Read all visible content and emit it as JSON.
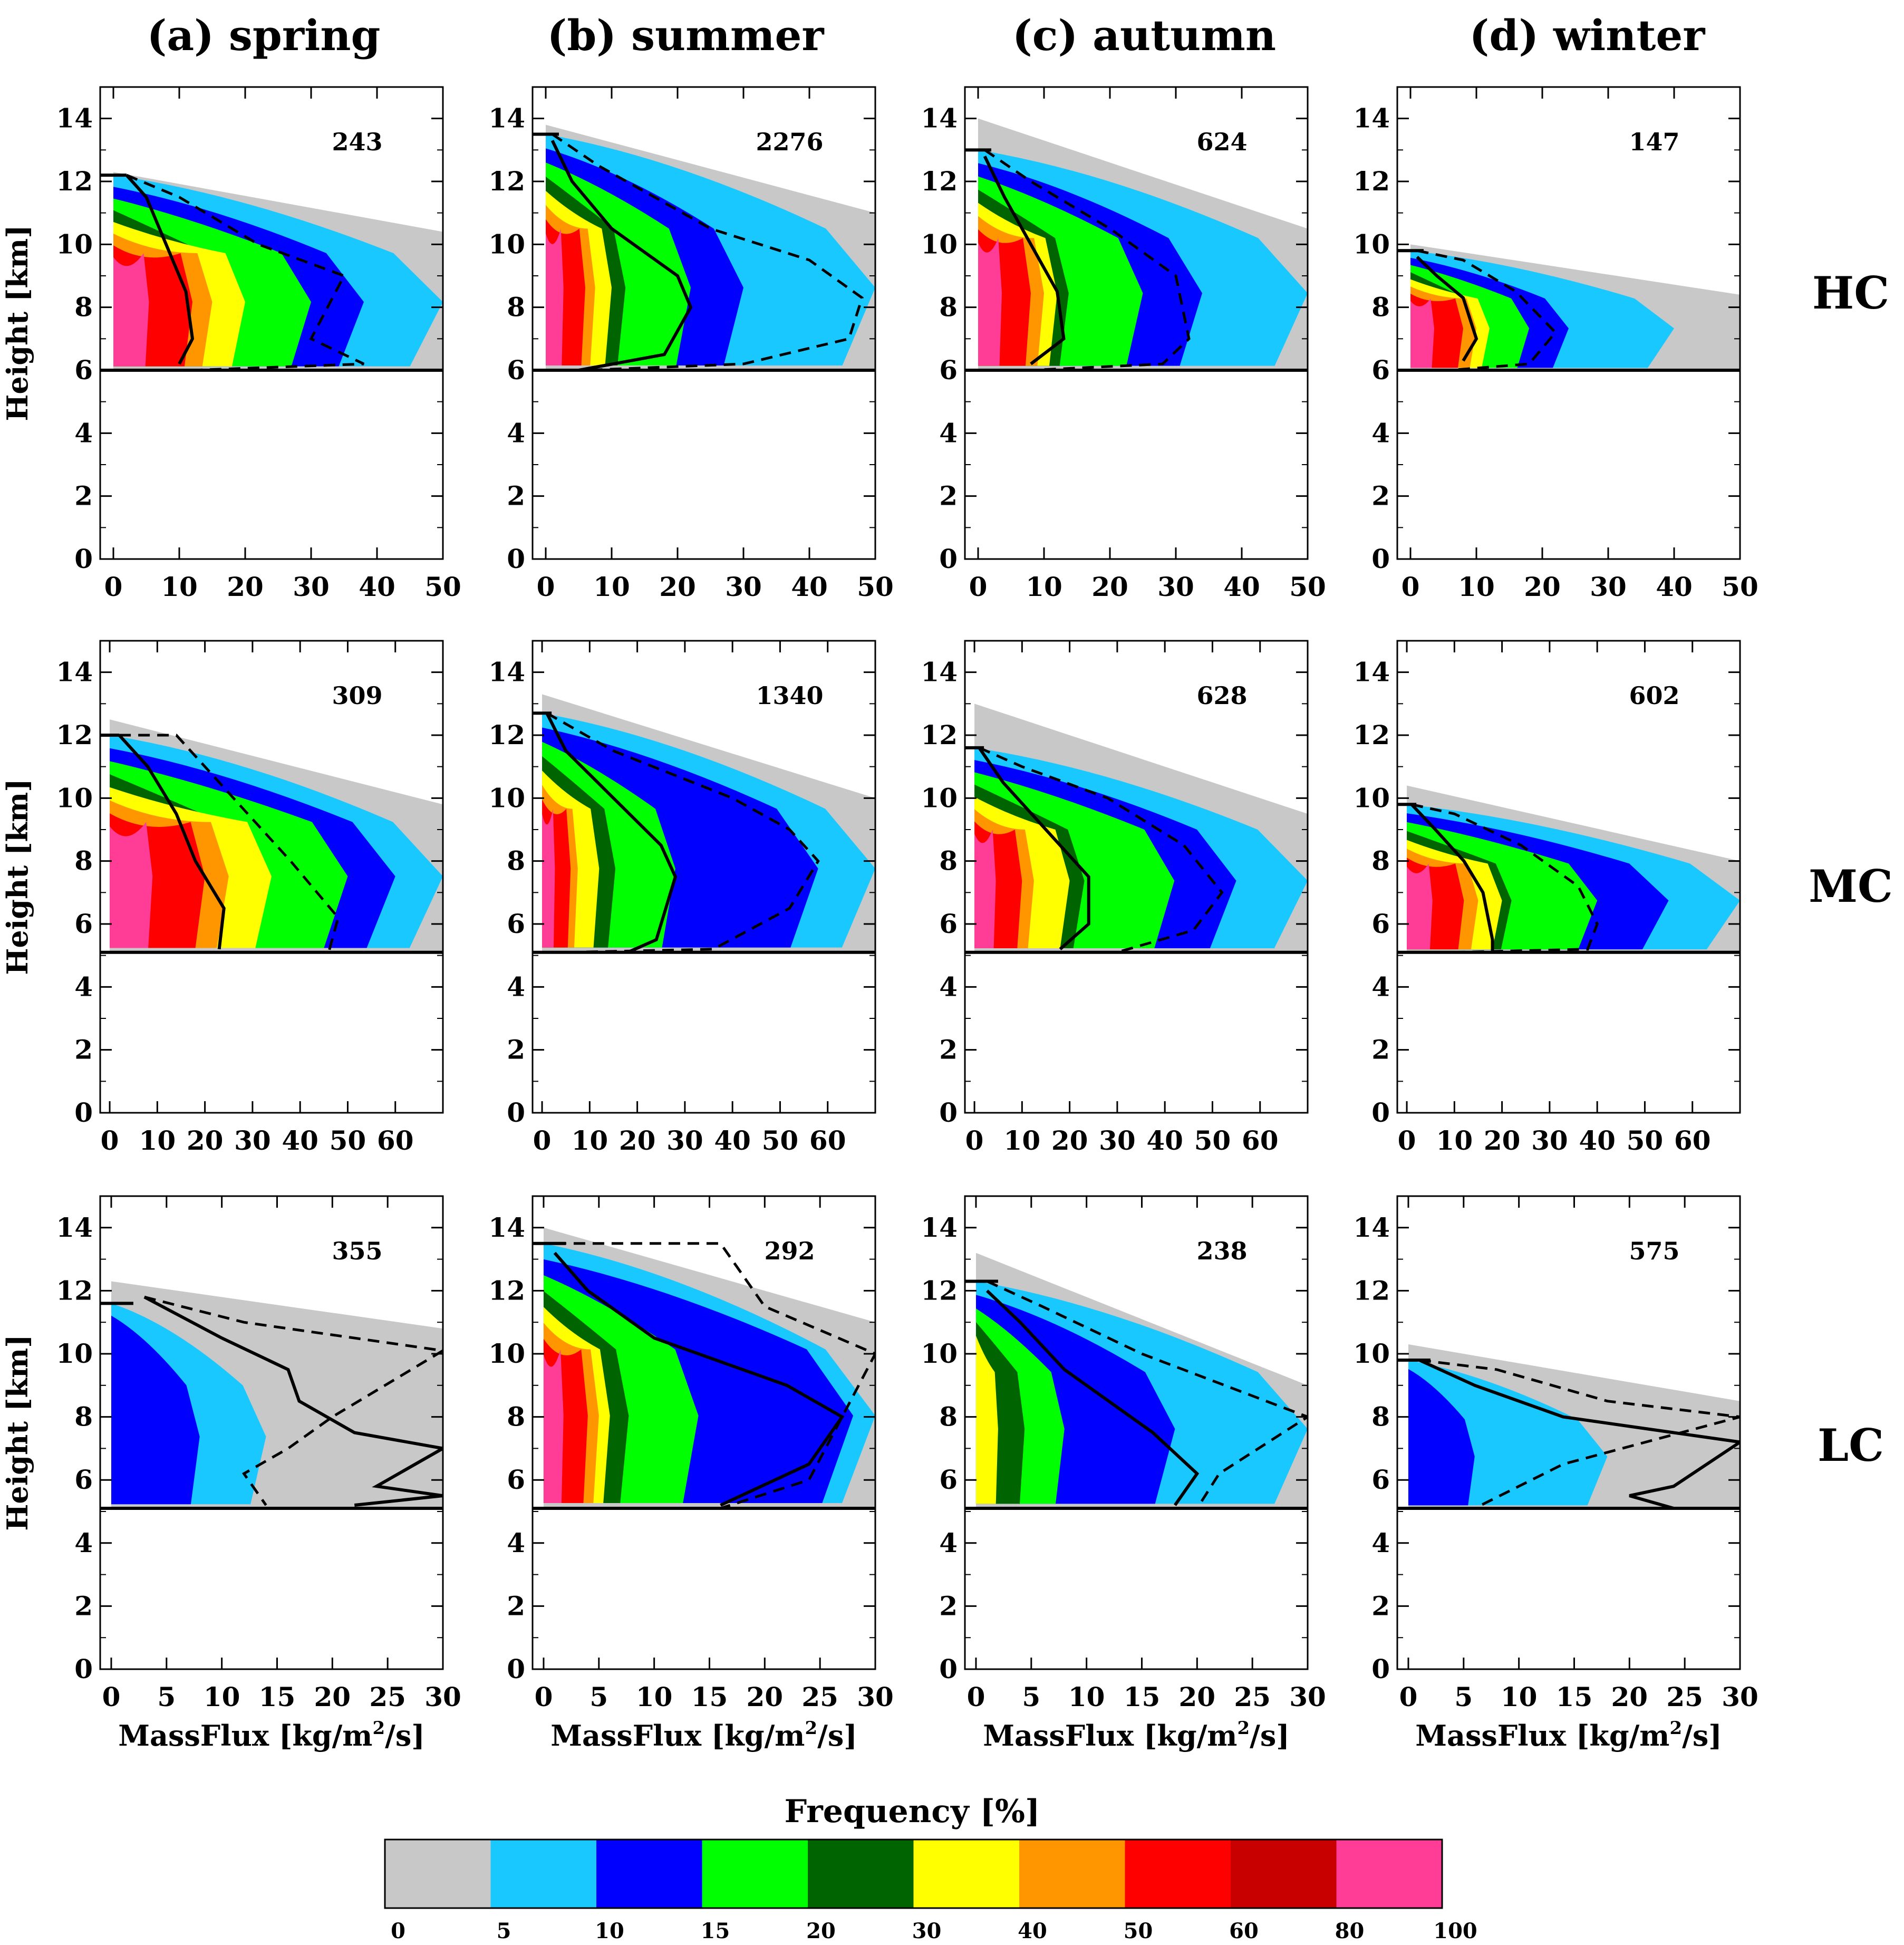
{
  "chart_data": {
    "type": "heatmap",
    "description_labels": {
      "columns": [
        "(a) spring",
        "(b) summer",
        "(c) autumn",
        "(d) winter"
      ],
      "rows": [
        "HC",
        "MC",
        "LC"
      ]
    },
    "ylabel": "Height [km]",
    "xlabel_prefix": "MassFlux [kg/m",
    "xlabel_sup": "2",
    "xlabel_suffix": "/s]",
    "ylim": [
      0,
      15
    ],
    "yticks": [
      "0",
      "2",
      "4",
      "6",
      "8",
      "10",
      "12",
      "14"
    ],
    "rows": [
      {
        "name": "HC",
        "xlim": [
          -2,
          50
        ],
        "xticks": [
          "0",
          "10",
          "20",
          "30",
          "40",
          "50"
        ],
        "base_km": 6,
        "panels": [
          {
            "season": "spring",
            "count": "243",
            "top_km": 12.2,
            "gray_top": 12.3,
            "gray_right_top": 10.4,
            "gray_max": 50,
            "cyan_max": 50,
            "blue_max": 38,
            "green_max": 30,
            "yellow_max": 20,
            "red_max": 12,
            "mean_line": [
              [
                2,
                12.2
              ],
              [
                5,
                11.5
              ],
              [
                8,
                10
              ],
              [
                11,
                8.5
              ],
              [
                12,
                7
              ],
              [
                10,
                6.2
              ]
            ],
            "dashed_line": [
              [
                2,
                12.2
              ],
              [
                10,
                11.5
              ],
              [
                22,
                10
              ],
              [
                35,
                9
              ],
              [
                30,
                7
              ],
              [
                38,
                6.2
              ],
              [
                12,
                6
              ]
            ]
          },
          {
            "season": "summer",
            "count": "2276",
            "top_km": 13.5,
            "gray_top": 13.8,
            "gray_right_top": 11,
            "gray_max": 50,
            "cyan_max": 50,
            "blue_max": 30,
            "green_max": 22,
            "yellow_max": 10,
            "red_max": 6,
            "mean_line": [
              [
                1,
                13.3
              ],
              [
                4,
                12
              ],
              [
                10,
                10.5
              ],
              [
                20,
                9
              ],
              [
                22,
                8
              ],
              [
                18,
                6.5
              ],
              [
                5,
                6
              ]
            ],
            "dashed_line": [
              [
                1,
                13.5
              ],
              [
                8,
                12.5
              ],
              [
                25,
                10.5
              ],
              [
                40,
                9.5
              ],
              [
                48,
                8.3
              ],
              [
                46,
                7
              ],
              [
                30,
                6.2
              ],
              [
                6,
                6
              ]
            ]
          },
          {
            "season": "autumn",
            "count": "624",
            "top_km": 13,
            "gray_top": 14,
            "gray_right_top": 10.5,
            "gray_max": 50,
            "cyan_max": 50,
            "blue_max": 34,
            "green_max": 25,
            "yellow_max": 12,
            "red_max": 8,
            "mean_line": [
              [
                1,
                12.8
              ],
              [
                4,
                11.5
              ],
              [
                8,
                10
              ],
              [
                12,
                8.5
              ],
              [
                13,
                7
              ],
              [
                8,
                6.2
              ]
            ],
            "dashed_line": [
              [
                1,
                13
              ],
              [
                8,
                12
              ],
              [
                20,
                10.5
              ],
              [
                30,
                9
              ],
              [
                32,
                7
              ],
              [
                28,
                6.2
              ],
              [
                8,
                6
              ]
            ]
          },
          {
            "season": "winter",
            "count": "147",
            "top_km": 9.8,
            "gray_top": 10,
            "gray_right_top": 8.4,
            "gray_max": 50,
            "cyan_max": 40,
            "blue_max": 24,
            "green_max": 18,
            "yellow_max": 12,
            "red_max": 8,
            "mean_line": [
              [
                1,
                9.6
              ],
              [
                4,
                9
              ],
              [
                8,
                8.3
              ],
              [
                10,
                7
              ],
              [
                8,
                6.3
              ]
            ],
            "dashed_line": [
              [
                1,
                9.8
              ],
              [
                8,
                9.5
              ],
              [
                16,
                8.5
              ],
              [
                22,
                7.2
              ],
              [
                18,
                6.2
              ],
              [
                6,
                6
              ]
            ]
          }
        ]
      },
      {
        "name": "MC",
        "xlim": [
          -2,
          70
        ],
        "xticks": [
          "0",
          "10",
          "20",
          "30",
          "40",
          "50",
          "60"
        ],
        "base_km": 5.1,
        "panels": [
          {
            "season": "spring",
            "count": "309",
            "top_km": 12,
            "gray_top": 12.5,
            "gray_right_top": 9.8,
            "gray_max": 70,
            "cyan_max": 70,
            "blue_max": 60,
            "green_max": 50,
            "yellow_max": 34,
            "red_max": 20,
            "mean_line": [
              [
                2,
                12
              ],
              [
                8,
                11
              ],
              [
                14,
                9.5
              ],
              [
                18,
                8
              ],
              [
                24,
                6.5
              ],
              [
                23,
                5.2
              ]
            ],
            "dashed_line": [
              [
                2,
                12
              ],
              [
                14,
                12
              ],
              [
                26,
                10
              ],
              [
                38,
                8
              ],
              [
                48,
                6.2
              ],
              [
                46,
                5.1
              ],
              [
                10,
                5.1
              ]
            ]
          },
          {
            "season": "summer",
            "count": "1340",
            "top_km": 12.7,
            "gray_top": 13.3,
            "gray_right_top": 10,
            "gray_max": 70,
            "cyan_max": 70,
            "blue_max": 58,
            "green_max": 28,
            "yellow_max": 12,
            "red_max": 6,
            "mean_line": [
              [
                1,
                12.7
              ],
              [
                5,
                11.5
              ],
              [
                15,
                10
              ],
              [
                25,
                8.5
              ],
              [
                28,
                7.5
              ],
              [
                24,
                5.5
              ],
              [
                18,
                5.1
              ]
            ],
            "dashed_line": [
              [
                1,
                12.7
              ],
              [
                15,
                11.5
              ],
              [
                40,
                10
              ],
              [
                52,
                9
              ],
              [
                58,
                8
              ],
              [
                52,
                6.5
              ],
              [
                36,
                5.2
              ],
              [
                6,
                5.1
              ]
            ]
          },
          {
            "season": "autumn",
            "count": "628",
            "top_km": 11.6,
            "gray_top": 13,
            "gray_right_top": 9.5,
            "gray_max": 70,
            "cyan_max": 70,
            "blue_max": 55,
            "green_max": 42,
            "yellow_max": 20,
            "red_max": 10,
            "mean_line": [
              [
                1,
                11.6
              ],
              [
                6,
                10.5
              ],
              [
                15,
                9
              ],
              [
                24,
                7.5
              ],
              [
                24,
                6
              ],
              [
                18,
                5.2
              ]
            ],
            "dashed_line": [
              [
                1,
                11.6
              ],
              [
                10,
                11
              ],
              [
                28,
                10
              ],
              [
                44,
                8.5
              ],
              [
                52,
                7
              ],
              [
                46,
                5.8
              ],
              [
                30,
                5.1
              ]
            ]
          },
          {
            "season": "winter",
            "count": "602",
            "top_km": 9.8,
            "gray_top": 10.4,
            "gray_right_top": 8,
            "gray_max": 70,
            "cyan_max": 70,
            "blue_max": 55,
            "green_max": 40,
            "yellow_max": 20,
            "red_max": 12,
            "mean_line": [
              [
                1,
                9.8
              ],
              [
                6,
                9
              ],
              [
                12,
                8
              ],
              [
                16,
                7
              ],
              [
                18,
                5.5
              ],
              [
                18,
                5.1
              ]
            ],
            "dashed_line": [
              [
                1,
                9.8
              ],
              [
                10,
                9.5
              ],
              [
                24,
                8.5
              ],
              [
                36,
                7.2
              ],
              [
                40,
                6
              ],
              [
                38,
                5.2
              ],
              [
                10,
                5.1
              ]
            ]
          }
        ]
      },
      {
        "name": "LC",
        "xlim": [
          -1,
          30
        ],
        "xticks": [
          "0",
          "5",
          "10",
          "15",
          "20",
          "25",
          "30"
        ],
        "base_km": 5.1,
        "panels": [
          {
            "season": "spring",
            "count": "355",
            "top_km": 11.6,
            "gray_top": 12.3,
            "gray_right_top": 10.8,
            "gray_max": 30,
            "cyan_max": 14,
            "blue_max": 8,
            "green_max": 0,
            "yellow_max": 0,
            "red_max": 0,
            "mean_line": [
              [
                3,
                11.8
              ],
              [
                10,
                10.5
              ],
              [
                16,
                9.5
              ],
              [
                17,
                8.5
              ],
              [
                22,
                7.5
              ],
              [
                30,
                7
              ],
              [
                24,
                5.8
              ],
              [
                30,
                5.5
              ],
              [
                22,
                5.2
              ]
            ],
            "dashed_line": [
              [
                3,
                11.8
              ],
              [
                12,
                11
              ],
              [
                20,
                10.6
              ],
              [
                30,
                10.1
              ],
              [
                20,
                8
              ],
              [
                16,
                7
              ],
              [
                12,
                6.2
              ],
              [
                14,
                5.2
              ]
            ]
          },
          {
            "season": "summer",
            "count": "292",
            "top_km": 13.5,
            "gray_top": 14,
            "gray_right_top": 11,
            "gray_max": 30,
            "cyan_max": 30,
            "blue_max": 28,
            "green_max": 14,
            "yellow_max": 6,
            "red_max": 4,
            "mean_line": [
              [
                1,
                13.2
              ],
              [
                4,
                12
              ],
              [
                10,
                10.5
              ],
              [
                22,
                9
              ],
              [
                27,
                8
              ],
              [
                24,
                6.5
              ],
              [
                16,
                5.2
              ]
            ],
            "dashed_line": [
              [
                1,
                13.5
              ],
              [
                16,
                13.5
              ],
              [
                20,
                11.5
              ],
              [
                30,
                10
              ],
              [
                27,
                8
              ],
              [
                24,
                6
              ],
              [
                16,
                5.1
              ],
              [
                6,
                5.1
              ]
            ]
          },
          {
            "season": "autumn",
            "count": "238",
            "top_km": 12.3,
            "gray_top": 13.2,
            "gray_right_top": 9,
            "gray_max": 30,
            "cyan_max": 30,
            "blue_max": 18,
            "green_max": 8,
            "yellow_max": 2,
            "red_max": 0,
            "mean_line": [
              [
                1,
                12
              ],
              [
                4,
                11
              ],
              [
                8,
                9.5
              ],
              [
                16,
                7.5
              ],
              [
                20,
                6.2
              ],
              [
                18,
                5.2
              ]
            ],
            "dashed_line": [
              [
                1,
                12.3
              ],
              [
                6,
                11.5
              ],
              [
                15,
                10
              ],
              [
                30,
                8
              ],
              [
                22,
                6.2
              ],
              [
                20,
                5.1
              ],
              [
                30,
                5.1
              ]
            ]
          },
          {
            "season": "winter",
            "count": "575",
            "top_km": 9.8,
            "gray_top": 10.3,
            "gray_right_top": 8.5,
            "gray_max": 30,
            "cyan_max": 18,
            "blue_max": 6,
            "green_max": 0,
            "yellow_max": 0,
            "red_max": 0,
            "mean_line": [
              [
                1,
                9.8
              ],
              [
                6,
                9
              ],
              [
                14,
                8
              ],
              [
                24,
                7.5
              ],
              [
                30,
                7.2
              ],
              [
                24,
                5.8
              ],
              [
                20,
                5.5
              ],
              [
                24,
                5.1
              ]
            ],
            "dashed_line": [
              [
                1,
                9.8
              ],
              [
                8,
                9.5
              ],
              [
                18,
                8.5
              ],
              [
                30,
                8
              ],
              [
                14,
                6.5
              ],
              [
                10,
                5.8
              ],
              [
                6,
                5.1
              ],
              [
                30,
                5.1
              ]
            ]
          }
        ]
      }
    ],
    "colorbar": {
      "title": "Frequency [%]",
      "ticks": [
        "0",
        "5",
        "10",
        "15",
        "20",
        "30",
        "40",
        "50",
        "60",
        "80",
        "100"
      ],
      "colors": [
        "#c8c8c8",
        "#19c8ff",
        "#0000ff",
        "#00ff00",
        "#006400",
        "#ffff00",
        "#ff9600",
        "#ff0000",
        "#c80000",
        "#ff3c96"
      ]
    }
  }
}
